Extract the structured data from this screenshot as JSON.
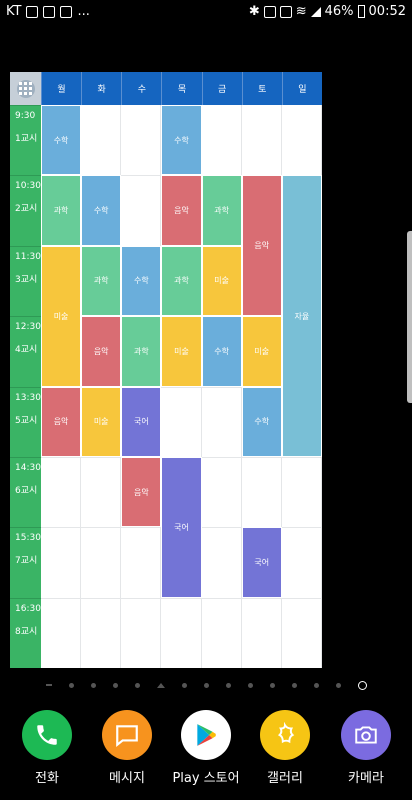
{
  "status_bar": {
    "carrier": "KT",
    "battery": "46%",
    "time": "00:52",
    "more": "..."
  },
  "timetable": {
    "days": [
      "월",
      "화",
      "수",
      "목",
      "금",
      "토",
      "일"
    ],
    "periods": [
      {
        "time": "9:30",
        "label": "1교시"
      },
      {
        "time": "10:30",
        "label": "2교시"
      },
      {
        "time": "11:30",
        "label": "3교시"
      },
      {
        "time": "12:30",
        "label": "4교시"
      },
      {
        "time": "13:30",
        "label": "5교시"
      },
      {
        "time": "14:30",
        "label": "6교시"
      },
      {
        "time": "15:30",
        "label": "7교시"
      },
      {
        "time": "16:30",
        "label": "8교시"
      }
    ],
    "classes": [
      {
        "day": 0,
        "start": 0,
        "span": 1,
        "subject": "수학",
        "color": "#6aaedb"
      },
      {
        "day": 3,
        "start": 0,
        "span": 1,
        "subject": "수학",
        "color": "#6aaedb"
      },
      {
        "day": 0,
        "start": 1,
        "span": 1,
        "subject": "과학",
        "color": "#67cc98"
      },
      {
        "day": 1,
        "start": 1,
        "span": 1,
        "subject": "수학",
        "color": "#6aaedb"
      },
      {
        "day": 3,
        "start": 1,
        "span": 1,
        "subject": "음악",
        "color": "#d96d73"
      },
      {
        "day": 4,
        "start": 1,
        "span": 1,
        "subject": "과학",
        "color": "#67cc98"
      },
      {
        "day": 5,
        "start": 1,
        "span": 2,
        "subject": "음악",
        "color": "#d96d73"
      },
      {
        "day": 6,
        "start": 1,
        "span": 4,
        "subject": "자율",
        "color": "#79bfd6"
      },
      {
        "day": 0,
        "start": 2,
        "span": 2,
        "subject": "미술",
        "color": "#f7c63c"
      },
      {
        "day": 1,
        "start": 2,
        "span": 1,
        "subject": "과학",
        "color": "#67cc98"
      },
      {
        "day": 2,
        "start": 2,
        "span": 1,
        "subject": "수학",
        "color": "#6aaedb"
      },
      {
        "day": 3,
        "start": 2,
        "span": 1,
        "subject": "과학",
        "color": "#67cc98"
      },
      {
        "day": 4,
        "start": 2,
        "span": 1,
        "subject": "미술",
        "color": "#f7c63c"
      },
      {
        "day": 1,
        "start": 3,
        "span": 1,
        "subject": "음악",
        "color": "#d96d73"
      },
      {
        "day": 2,
        "start": 3,
        "span": 1,
        "subject": "과학",
        "color": "#67cc98"
      },
      {
        "day": 3,
        "start": 3,
        "span": 1,
        "subject": "미술",
        "color": "#f7c63c"
      },
      {
        "day": 4,
        "start": 3,
        "span": 1,
        "subject": "수학",
        "color": "#6aaedb"
      },
      {
        "day": 5,
        "start": 3,
        "span": 1,
        "subject": "미술",
        "color": "#f7c63c"
      },
      {
        "day": 0,
        "start": 4,
        "span": 1,
        "subject": "음악",
        "color": "#d96d73"
      },
      {
        "day": 1,
        "start": 4,
        "span": 1,
        "subject": "미술",
        "color": "#f7c63c"
      },
      {
        "day": 2,
        "start": 4,
        "span": 1,
        "subject": "국어",
        "color": "#7374d6"
      },
      {
        "day": 5,
        "start": 4,
        "span": 1,
        "subject": "수학",
        "color": "#6aaedb"
      },
      {
        "day": 2,
        "start": 5,
        "span": 1,
        "subject": "음악",
        "color": "#d96d73"
      },
      {
        "day": 3,
        "start": 5,
        "span": 2,
        "subject": "국어",
        "color": "#7374d6"
      },
      {
        "day": 5,
        "start": 6,
        "span": 1,
        "subject": "국어",
        "color": "#7374d6"
      }
    ]
  },
  "page_indicator": {
    "count": 15,
    "active_index": 14
  },
  "dock": [
    {
      "label": "전화",
      "color": "#1db954",
      "icon": "phone-icon"
    },
    {
      "label": "메시지",
      "color": "#f7931e",
      "icon": "message-icon"
    },
    {
      "label": "Play 스토어",
      "color": "#ffffff",
      "icon": "play-store-icon"
    },
    {
      "label": "갤러리",
      "color": "#f6c514",
      "icon": "gallery-icon"
    },
    {
      "label": "카메라",
      "color": "#7b6be0",
      "icon": "camera-icon"
    }
  ]
}
